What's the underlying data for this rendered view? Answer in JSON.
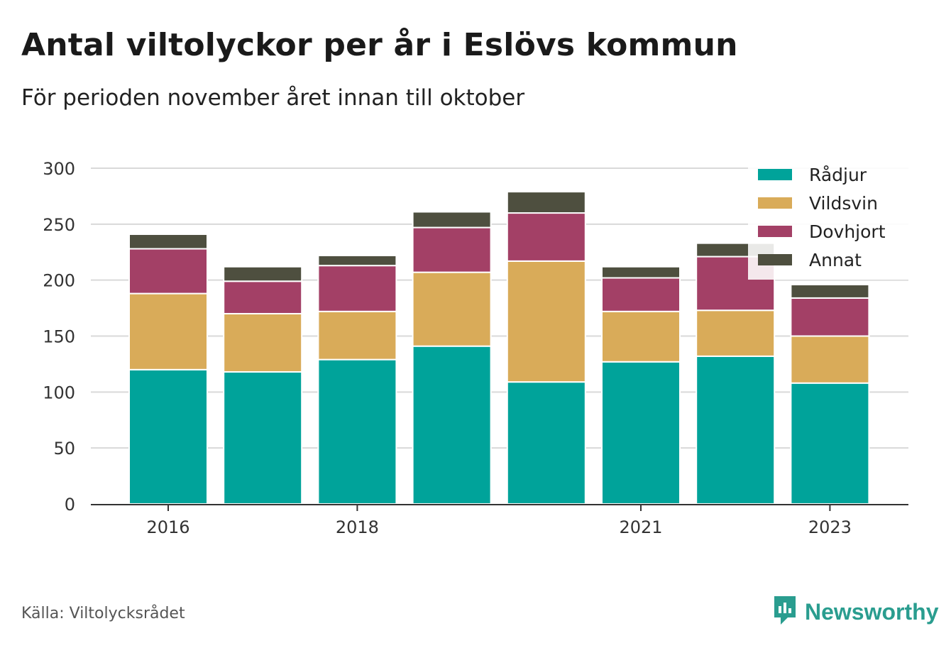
{
  "header": {
    "title": "Antal viltolyckor per år i Eslövs kommun",
    "subtitle": "För perioden november året innan till oktober"
  },
  "footer": {
    "source": "Källa: Viltolycksrådet",
    "brand": "Newsworthy",
    "brand_icon": "newsworthy-logo-icon",
    "brand_color": "#2a9d8f"
  },
  "chart_data": {
    "type": "bar",
    "stacked": true,
    "categories": [
      "2016",
      "2017",
      "2018",
      "2019",
      "2020",
      "2021",
      "2022",
      "2023"
    ],
    "x_tick_labels": [
      "2016",
      "2018",
      "2021",
      "2023"
    ],
    "series": [
      {
        "name": "Rådjur",
        "color": "#00a39a",
        "values": [
          120,
          118,
          129,
          141,
          109,
          127,
          132,
          108
        ]
      },
      {
        "name": "Vildsvin",
        "color": "#d9ab59",
        "values": [
          68,
          52,
          43,
          66,
          108,
          45,
          41,
          42
        ]
      },
      {
        "name": "Dovhjort",
        "color": "#a34066",
        "values": [
          40,
          29,
          41,
          40,
          43,
          30,
          48,
          34
        ]
      },
      {
        "name": "Annat",
        "color": "#4e4f3f",
        "values": [
          13,
          13,
          9,
          14,
          19,
          10,
          12,
          12
        ]
      }
    ],
    "ylim": [
      0,
      300
    ],
    "yticks": [
      0,
      50,
      100,
      150,
      200,
      250,
      300
    ],
    "grid": true,
    "legend_position": "top-right"
  }
}
